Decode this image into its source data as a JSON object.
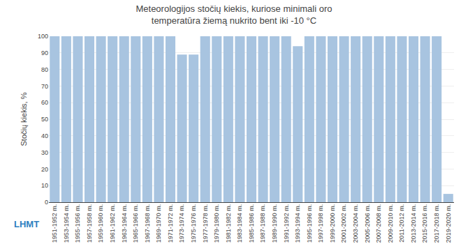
{
  "chart_data": {
    "type": "bar",
    "title": "Meteorologijos stočių kiekis, kuriose minimali oro\ntemperatūra žiemą nukrito bent iki -10 °C",
    "ylabel": "Stočių kiekis, %",
    "categories": [
      "1951-1952 m.",
      "1953-1954 m.",
      "1955-1956 m.",
      "1957-1958 m.",
      "1959-1960 m.",
      "1961-1962 m.",
      "1963-1964 m.",
      "1965-1966 m.",
      "1967-1968 m.",
      "1969-1970 m.",
      "1971-1972 m.",
      "1973-1974 m.",
      "1975-1976 m.",
      "1977-1978 m.",
      "1979-1980 m.",
      "1981-1982 m.",
      "1983-1984 m.",
      "1985-1986 m.",
      "1987-1988 m.",
      "1989-1990 m.",
      "1991-1992 m.",
      "1993-1994 m.",
      "1995-1996 m.",
      "1997-1998 m.",
      "1999-2000 m.",
      "2001-2002 m.",
      "2003-2004 m.",
      "2005-2006 m.",
      "2007-2008 m.",
      "2009-2010 m.",
      "2011-2012 m.",
      "2013-2014 m.",
      "2015-2016 m.",
      "2017-2018 m.",
      "2019-2020 m."
    ],
    "values": [
      100,
      100,
      100,
      100,
      100,
      100,
      100,
      100,
      100,
      100,
      100,
      89,
      89,
      100,
      100,
      100,
      100,
      100,
      100,
      100,
      100,
      94,
      100,
      100,
      100,
      100,
      100,
      100,
      100,
      100,
      100,
      100,
      100,
      100,
      5
    ],
    "color": "#a8c4e0",
    "ylim": [
      0,
      100
    ],
    "yticks": [
      0,
      10,
      20,
      30,
      40,
      50,
      60,
      70,
      80,
      90,
      100
    ],
    "grid": true,
    "annotations": [
      {
        "text": "LHMT",
        "color": "#2e7fc0"
      }
    ]
  }
}
